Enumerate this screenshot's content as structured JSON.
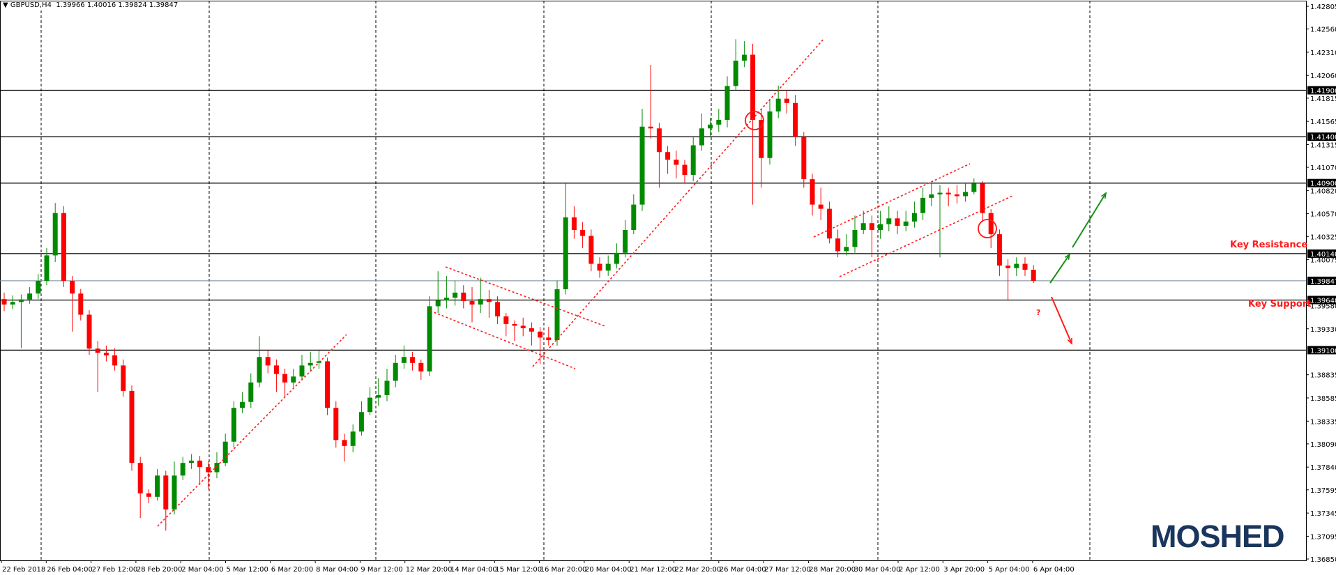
{
  "header": {
    "symbol": "GBPUSD,H4",
    "ohlc": "1.39966 1.40016 1.39824 1.39847",
    "menu_icon": "triangle-down-icon"
  },
  "annotations": {
    "key_resistance": "Key Resistance",
    "key_support": "Key Support",
    "question": "?"
  },
  "logo": "MOSHED",
  "colors": {
    "bull": "#008a00",
    "bear": "#ff0000",
    "trendline": "#ff1a1a",
    "arrow_up": "#159015",
    "arrow_down": "#ff1a1a",
    "level_line": "#000000",
    "bid_line": "#778899",
    "logo": "#1b365d"
  },
  "chart_data": {
    "type": "candlestick",
    "title": "GBPUSD,H4",
    "ylim": [
      1.3685,
      1.42805
    ],
    "grid": true,
    "y_ticks": [
      "1.42805",
      "1.42560",
      "1.42310",
      "1.42060",
      "1.41815",
      "1.41565",
      "1.41315",
      "1.41070",
      "1.40820",
      "1.40570",
      "1.40325",
      "1.40075",
      "1.39580",
      "1.39330",
      "1.38835",
      "1.38585",
      "1.38335",
      "1.38090",
      "1.37840",
      "1.37595",
      "1.37345",
      "1.37095",
      "1.36850"
    ],
    "x_ticks": [
      "22 Feb 2018",
      "26 Feb 04:00",
      "27 Feb 12:00",
      "28 Feb 20:00",
      "2 Mar 04:00",
      "5 Mar 12:00",
      "6 Mar 20:00",
      "8 Mar 04:00",
      "9 Mar 12:00",
      "12 Mar 20:00",
      "14 Mar 04:00",
      "15 Mar 12:00",
      "16 Mar 20:00",
      "20 Mar 04:00",
      "21 Mar 12:00",
      "22 Mar 20:00",
      "26 Mar 04:00",
      "27 Mar 12:00",
      "28 Mar 20:00",
      "30 Mar 04:00",
      "2 Apr 12:00",
      "3 Apr 20:00",
      "5 Apr 04:00",
      "6 Apr 04:00"
    ],
    "levels": [
      "1.41900",
      "1.41400",
      "1.40900",
      "1.40140",
      "1.39640",
      "1.39100"
    ],
    "bid": "1.39847",
    "candle_format": [
      "open",
      "high",
      "low",
      "close"
    ],
    "candles": [
      [
        1.3965,
        1.3972,
        1.3952,
        1.39592
      ],
      [
        1.39592,
        1.3969,
        1.3954,
        1.39619
      ],
      [
        1.39619,
        1.397,
        1.3912,
        1.39646
      ],
      [
        1.39646,
        1.3978,
        1.396,
        1.3971
      ],
      [
        1.3971,
        1.3992,
        1.3965,
        1.39847
      ],
      [
        1.39847,
        1.402,
        1.398,
        1.40121
      ],
      [
        1.40121,
        1.40686,
        1.4005,
        1.40577
      ],
      [
        1.40577,
        1.4065,
        1.3978,
        1.39847
      ],
      [
        1.39847,
        1.399,
        1.393,
        1.3971
      ],
      [
        1.3971,
        1.3976,
        1.3942,
        1.39482
      ],
      [
        1.39482,
        1.3953,
        1.3905,
        1.39117
      ],
      [
        1.39117,
        1.392,
        1.3865,
        1.39072
      ],
      [
        1.39072,
        1.3915,
        1.3898,
        1.39044
      ],
      [
        1.39044,
        1.3912,
        1.3888,
        1.38935
      ],
      [
        1.38935,
        1.39,
        1.386,
        1.38661
      ],
      [
        1.38661,
        1.3872,
        1.378,
        1.37885
      ],
      [
        1.37885,
        1.3795,
        1.37292,
        1.37557
      ],
      [
        1.37557,
        1.376,
        1.3745,
        1.3752
      ],
      [
        1.3752,
        1.3782,
        1.3748,
        1.37749
      ],
      [
        1.37749,
        1.378,
        1.37155,
        1.37384
      ],
      [
        1.37384,
        1.379,
        1.3733,
        1.37749
      ],
      [
        1.37749,
        1.3795,
        1.377,
        1.37885
      ],
      [
        1.37885,
        1.3798,
        1.3782,
        1.3791
      ],
      [
        1.3791,
        1.3796,
        1.3765,
        1.3784
      ],
      [
        1.3784,
        1.379,
        1.376,
        1.37785
      ],
      [
        1.37785,
        1.38,
        1.3772,
        1.37885
      ],
      [
        1.37885,
        1.382,
        1.3785,
        1.38114
      ],
      [
        1.38114,
        1.3855,
        1.3805,
        1.38478
      ],
      [
        1.38478,
        1.3865,
        1.3842,
        1.38542
      ],
      [
        1.38542,
        1.3885,
        1.3848,
        1.38752
      ],
      [
        1.38752,
        1.3925,
        1.387,
        1.39026
      ],
      [
        1.39026,
        1.391,
        1.3885,
        1.38935
      ],
      [
        1.38935,
        1.39,
        1.3865,
        1.38843
      ],
      [
        1.38843,
        1.389,
        1.386,
        1.38752
      ],
      [
        1.38752,
        1.389,
        1.387,
        1.38816
      ],
      [
        1.38816,
        1.3905,
        1.3878,
        1.38935
      ],
      [
        1.38935,
        1.3908,
        1.3888,
        1.38962
      ],
      [
        1.38962,
        1.391,
        1.389,
        1.3898
      ],
      [
        1.3898,
        1.3902,
        1.384,
        1.38478
      ],
      [
        1.38478,
        1.3855,
        1.3805,
        1.38132
      ],
      [
        1.38132,
        1.382,
        1.379,
        1.38068
      ],
      [
        1.38068,
        1.383,
        1.38,
        1.38223
      ],
      [
        1.38223,
        1.3855,
        1.3818,
        1.38433
      ],
      [
        1.38433,
        1.387,
        1.384,
        1.38588
      ],
      [
        1.38588,
        1.388,
        1.385,
        1.38615
      ],
      [
        1.38615,
        1.389,
        1.3855,
        1.3877
      ],
      [
        1.3877,
        1.3905,
        1.387,
        1.38962
      ],
      [
        1.38962,
        1.3915,
        1.389,
        1.39026
      ],
      [
        1.39026,
        1.3908,
        1.3888,
        1.38962
      ],
      [
        1.38962,
        1.39,
        1.3878,
        1.38871
      ],
      [
        1.38871,
        1.3968,
        1.3882,
        1.39573
      ],
      [
        1.39573,
        1.3995,
        1.395,
        1.39637
      ],
      [
        1.39637,
        1.399,
        1.3955,
        1.39665
      ],
      [
        1.39665,
        1.3985,
        1.3958,
        1.3972
      ],
      [
        1.3972,
        1.398,
        1.3955,
        1.39628
      ],
      [
        1.39628,
        1.3978,
        1.394,
        1.39592
      ],
      [
        1.39592,
        1.3988,
        1.395,
        1.3965
      ],
      [
        1.3965,
        1.3975,
        1.3945,
        1.39619
      ],
      [
        1.39619,
        1.3968,
        1.3938,
        1.39464
      ],
      [
        1.39464,
        1.395,
        1.3925,
        1.39382
      ],
      [
        1.39382,
        1.3942,
        1.392,
        1.39363
      ],
      [
        1.39363,
        1.3945,
        1.3925,
        1.39336
      ],
      [
        1.39336,
        1.394,
        1.3915,
        1.393
      ],
      [
        1.393,
        1.3935,
        1.3895,
        1.39236
      ],
      [
        1.39236,
        1.3935,
        1.3915,
        1.39208
      ],
      [
        1.39208,
        1.3985,
        1.3915,
        1.39756
      ],
      [
        1.39756,
        1.409,
        1.397,
        1.40531
      ],
      [
        1.40531,
        1.4065,
        1.403,
        1.40395
      ],
      [
        1.40395,
        1.4048,
        1.402,
        1.40331
      ],
      [
        1.40331,
        1.404,
        1.3995,
        1.4003
      ],
      [
        1.4003,
        1.401,
        1.3988,
        1.39957
      ],
      [
        1.39957,
        1.4012,
        1.399,
        1.4003
      ],
      [
        1.4003,
        1.4025,
        1.3998,
        1.40148
      ],
      [
        1.40148,
        1.405,
        1.401,
        1.40395
      ],
      [
        1.40395,
        1.4078,
        1.4035,
        1.40668
      ],
      [
        1.40668,
        1.417,
        1.406,
        1.41508
      ],
      [
        1.41508,
        1.42174,
        1.4138,
        1.41489
      ],
      [
        1.41489,
        1.4155,
        1.4085,
        1.41234
      ],
      [
        1.41234,
        1.413,
        1.41,
        1.41152
      ],
      [
        1.41152,
        1.4125,
        1.4095,
        1.41097
      ],
      [
        1.41097,
        1.4115,
        1.409,
        1.40988
      ],
      [
        1.40988,
        1.414,
        1.4092,
        1.41307
      ],
      [
        1.41307,
        1.4165,
        1.4125,
        1.41489
      ],
      [
        1.41489,
        1.416,
        1.414,
        1.4153
      ],
      [
        1.4153,
        1.417,
        1.4145,
        1.41581
      ],
      [
        1.41581,
        1.4205,
        1.415,
        1.41946
      ],
      [
        1.41946,
        1.4245,
        1.419,
        1.42219
      ],
      [
        1.42219,
        1.42429,
        1.4215,
        1.42283
      ],
      [
        1.42283,
        1.424,
        1.40668,
        1.41581
      ],
      [
        1.41581,
        1.417,
        1.4085,
        1.4117
      ],
      [
        1.4117,
        1.418,
        1.411,
        1.41672
      ],
      [
        1.41672,
        1.4195,
        1.416,
        1.41809
      ],
      [
        1.41809,
        1.419,
        1.4165,
        1.41763
      ],
      [
        1.41763,
        1.4185,
        1.413,
        1.41398
      ],
      [
        1.41398,
        1.4145,
        1.4085,
        1.40942
      ],
      [
        1.40942,
        1.41,
        1.4055,
        1.40668
      ],
      [
        1.40668,
        1.4085,
        1.405,
        1.40623
      ],
      [
        1.40623,
        1.407,
        1.4025,
        1.40303
      ],
      [
        1.40303,
        1.404,
        1.401,
        1.40166
      ],
      [
        1.40166,
        1.4035,
        1.4012,
        1.40212
      ],
      [
        1.40212,
        1.4055,
        1.4015,
        1.40395
      ],
      [
        1.40395,
        1.406,
        1.4035,
        1.40468
      ],
      [
        1.40468,
        1.4055,
        1.401,
        1.40395
      ],
      [
        1.40395,
        1.406,
        1.403,
        1.40458
      ],
      [
        1.40458,
        1.4065,
        1.4038,
        1.4052
      ],
      [
        1.4052,
        1.406,
        1.4035,
        1.4044
      ],
      [
        1.4044,
        1.406,
        1.4038,
        1.40486
      ],
      [
        1.40486,
        1.407,
        1.4042,
        1.40577
      ],
      [
        1.40577,
        1.4085,
        1.405,
        1.40741
      ],
      [
        1.40741,
        1.409,
        1.4065,
        1.40778
      ],
      [
        1.40778,
        1.4088,
        1.401,
        1.40796
      ],
      [
        1.40796,
        1.4085,
        1.4065,
        1.40778
      ],
      [
        1.40778,
        1.4088,
        1.4068,
        1.40759
      ],
      [
        1.40759,
        1.409,
        1.407,
        1.40805
      ],
      [
        1.40805,
        1.4095,
        1.4078,
        1.40896
      ],
      [
        1.40896,
        1.4092,
        1.4048,
        1.40577
      ],
      [
        1.40577,
        1.4062,
        1.402,
        1.40349
      ],
      [
        1.40349,
        1.404,
        1.399,
        1.40011
      ],
      [
        1.40011,
        1.4008,
        1.3964,
        1.39984
      ],
      [
        1.39984,
        1.401,
        1.399,
        1.4003
      ],
      [
        1.4003,
        1.401,
        1.399,
        1.39966
      ],
      [
        1.39966,
        1.40016,
        1.39824,
        1.39847
      ]
    ]
  }
}
